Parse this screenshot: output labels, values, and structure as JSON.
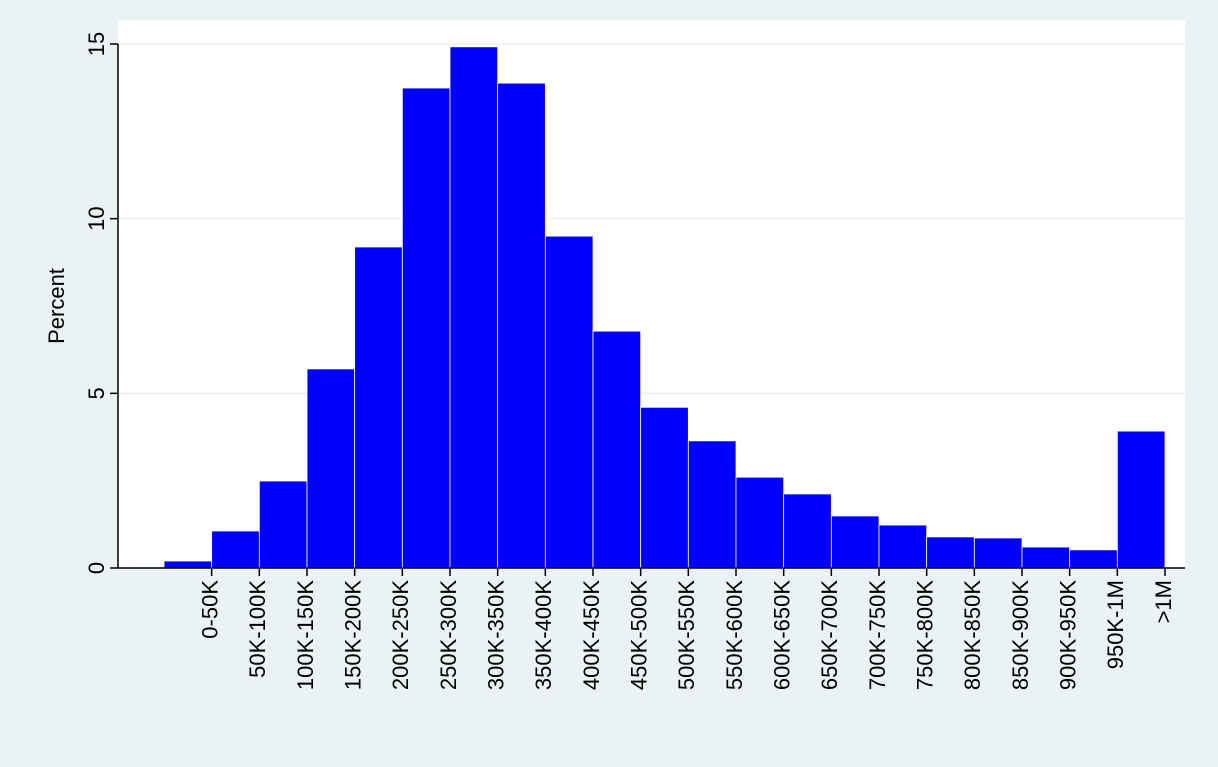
{
  "chart_data": {
    "type": "bar",
    "y_label": "Percent",
    "categories": [
      "0-50K",
      "50K-100K",
      "100K-150K",
      "150K-200K",
      "200K-250K",
      "250K-300K",
      "300K-350K",
      "350K-400K",
      "400K-450K",
      "450K-500K",
      "500K-550K",
      "550K-600K",
      "600K-650K",
      "650K-700K",
      "700K-750K",
      "750K-800K",
      "800K-850K",
      "850K-900K",
      "900K-950K",
      "950K-1M",
      ">1M"
    ],
    "values": [
      0.2,
      1.06,
      2.49,
      5.7,
      9.19,
      13.74,
      14.92,
      13.88,
      9.5,
      6.78,
      4.6,
      3.64,
      2.6,
      2.12,
      1.49,
      1.23,
      0.89,
      0.86,
      0.6,
      0.52,
      3.92
    ],
    "color": "#0000ff",
    "ylim": [
      0,
      15
    ],
    "yticks": [
      0,
      5,
      10,
      15
    ],
    "grid": true
  }
}
